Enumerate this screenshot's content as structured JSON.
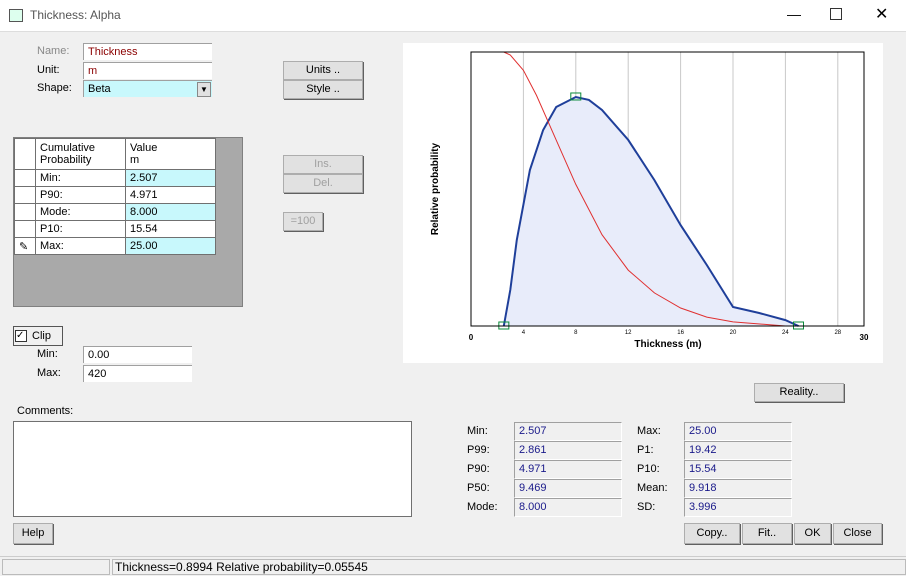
{
  "window": {
    "title": "Thickness: Alpha"
  },
  "fields": {
    "name": {
      "label": "Name:",
      "value": "Thickness"
    },
    "unit": {
      "label": "Unit:",
      "value": "m"
    },
    "shape": {
      "label": "Shape:",
      "value": "Beta"
    }
  },
  "buttons": {
    "units": "Units ..",
    "style": "Style ..",
    "ins": "Ins.",
    "del": "Del.",
    "eq100": "=100",
    "reality": "Reality..",
    "help": "Help",
    "copy": "Copy..",
    "fit": "Fit..",
    "ok": "OK",
    "close": "Close"
  },
  "table": {
    "header": [
      [
        "Cumulative",
        "Probability"
      ],
      [
        "Value",
        "m"
      ]
    ],
    "rows": [
      [
        "Min:",
        "2.507"
      ],
      [
        "P90:",
        "4.971"
      ],
      [
        "Mode:",
        "8.000"
      ],
      [
        "P10:",
        "15.54"
      ],
      [
        "Max:",
        "25.00"
      ]
    ]
  },
  "clip": {
    "label": "Clip",
    "checked": true,
    "min_label": "Min:",
    "min": "0.00",
    "max_label": "Max:",
    "max": "420"
  },
  "comments": {
    "label": "Comments:"
  },
  "stats": {
    "left": [
      [
        "Min:",
        "2.507"
      ],
      [
        "P99:",
        "2.861"
      ],
      [
        "P90:",
        "4.971"
      ],
      [
        "P50:",
        "9.469"
      ],
      [
        "Mode:",
        "8.000"
      ]
    ],
    "right": [
      [
        "Max:",
        "25.00"
      ],
      [
        "P1:",
        "19.42"
      ],
      [
        "P10:",
        "15.54"
      ],
      [
        "Mean:",
        "9.918"
      ],
      [
        "SD:",
        "3.996"
      ]
    ]
  },
  "status": "Thickness=0.8994  Relative probability=0.05545",
  "chart_data": {
    "type": "line",
    "x_label": "Thickness (m)",
    "y_label": "Relative probability",
    "xlim": [
      0,
      30
    ],
    "xticks": [
      0,
      4,
      8,
      12,
      16,
      20,
      24,
      28,
      30
    ],
    "ylim": [
      0,
      0.12
    ],
    "grid": true,
    "series": [
      {
        "name": "density",
        "color": "#1f3f9a",
        "fill": "#e8ecfa",
        "x": [
          2.507,
          3,
          3.5,
          4.5,
          5.5,
          6.5,
          8,
          9,
          10,
          12,
          14,
          16,
          18,
          20,
          22,
          24,
          25
        ],
        "values": [
          0,
          0.0158,
          0.0377,
          0.0683,
          0.0858,
          0.0959,
          0.1003,
          0.099,
          0.0946,
          0.0815,
          0.0639,
          0.0442,
          0.0267,
          0.0083,
          0.0057,
          0.0026,
          0
        ]
      },
      {
        "name": "cumulative",
        "color": "#e03030",
        "x": [
          2.507,
          3,
          4,
          5,
          6,
          7,
          8,
          10,
          12,
          14,
          16,
          18,
          20,
          24
        ],
        "values": [
          0.12,
          0.1187,
          0.112,
          0.101,
          0.088,
          0.075,
          0.062,
          0.04,
          0.0245,
          0.0145,
          0.0079,
          0.0039,
          0.0018,
          0
        ]
      }
    ]
  }
}
